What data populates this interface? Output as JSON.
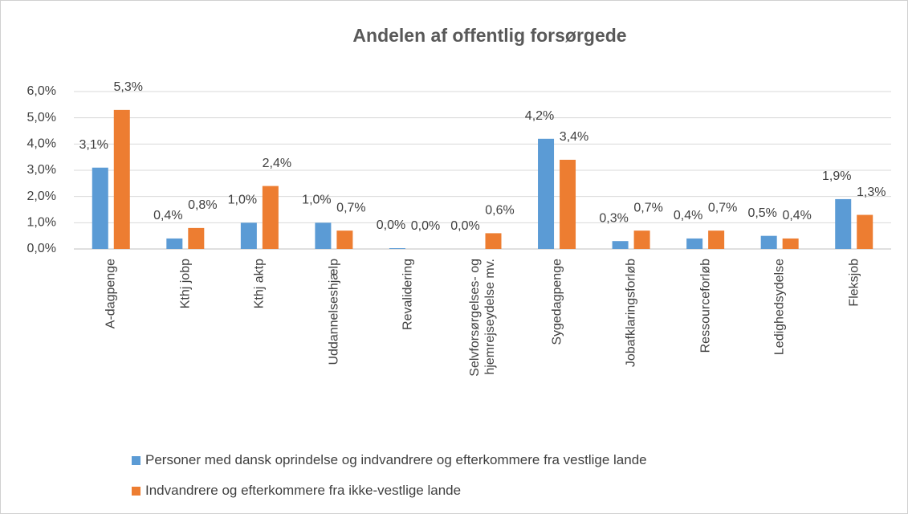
{
  "chart_data": {
    "type": "bar",
    "title": "Andelen af offentlig forsørgede",
    "categories": [
      "A-dagpenge",
      "Kthj jobp",
      "Kthj aktp",
      "Uddannelseshjælp",
      "Revalidering",
      "Selvforsørgelses- og\nhjemrejseydelse mv.",
      "Sygedagpenge",
      "Jobafklaringsforløb",
      "Ressourceforløb",
      "Ledighedsydelse",
      "Fleksjob"
    ],
    "series": [
      {
        "name": "Personer med dansk oprindelse og indvandrere og efterkommere fra vestlige lande",
        "color": "#5b9bd5",
        "values": [
          3.1,
          0.4,
          1.0,
          1.0,
          0.03,
          0.0,
          4.2,
          0.3,
          0.4,
          0.5,
          1.9
        ],
        "value_labels": [
          "3,1%",
          "0,4%",
          "1,0%",
          "1,0%",
          "0,0%",
          "0,0%",
          "4,2%",
          "0,3%",
          "0,4%",
          "0,5%",
          "1,9%"
        ]
      },
      {
        "name": "Indvandrere og efterkommere fra ikke-vestlige lande",
        "color": "#ed7d31",
        "values": [
          5.3,
          0.8,
          2.4,
          0.7,
          0.0,
          0.6,
          3.4,
          0.7,
          0.7,
          0.4,
          1.3
        ],
        "value_labels": [
          "5,3%",
          "0,8%",
          "2,4%",
          "0,7%",
          "0,0%",
          "0,6%",
          "3,4%",
          "0,7%",
          "0,7%",
          "0,4%",
          "1,3%"
        ]
      }
    ],
    "ylim": [
      0,
      6
    ],
    "yticks": [
      {
        "value": 0,
        "label": "0,0%"
      },
      {
        "value": 1,
        "label": "1,0%"
      },
      {
        "value": 2,
        "label": "2,0%"
      },
      {
        "value": 3,
        "label": "3,0%"
      },
      {
        "value": 4,
        "label": "4,0%"
      },
      {
        "value": 5,
        "label": "5,0%"
      },
      {
        "value": 6,
        "label": "6,0%"
      }
    ],
    "grid": true
  }
}
